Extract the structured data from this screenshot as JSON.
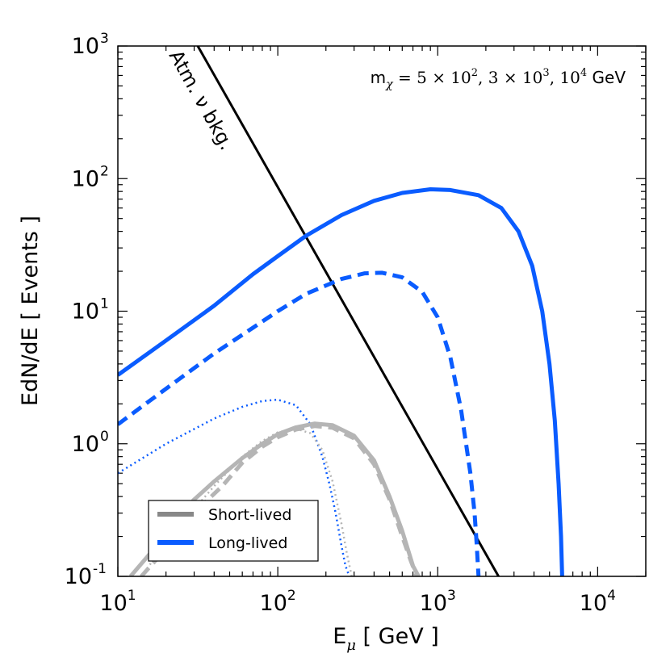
{
  "chart_data": {
    "type": "line",
    "title": "",
    "xlabel": {
      "base": "E",
      "sub": "μ",
      "units": " [ GeV ]"
    },
    "ylabel": "EdN/dE [ Events ]",
    "xscale": "log",
    "yscale": "log",
    "xlim": [
      10,
      20000
    ],
    "ylim": [
      0.1,
      1000
    ],
    "x_ticks": [
      {
        "value": 10,
        "base": "10",
        "exp": "1"
      },
      {
        "value": 100,
        "base": "10",
        "exp": "2"
      },
      {
        "value": 1000,
        "base": "10",
        "exp": "3"
      },
      {
        "value": 10000,
        "base": "10",
        "exp": "4"
      }
    ],
    "y_ticks": [
      {
        "value": 0.1,
        "base": "10",
        "exp": "-1"
      },
      {
        "value": 1,
        "base": "10",
        "exp": "0"
      },
      {
        "value": 10,
        "base": "10",
        "exp": "1"
      },
      {
        "value": 100,
        "base": "10",
        "exp": "2"
      },
      {
        "value": 1000,
        "base": "10",
        "exp": "3"
      }
    ],
    "annotations": {
      "mass_label": "m",
      "mass_sub": "χ",
      "mass_eq": " = 5 × 10",
      "mass_e1": "2",
      "mass_sep1": ", 3 × 10",
      "mass_e2": "3",
      "mass_sep2": ", 10",
      "mass_e3": "4",
      "mass_unit": " GeV",
      "bkg_label": "Atm. ν bkg."
    },
    "legend": {
      "position": "lower-left",
      "entries": [
        {
          "label": "Short-lived",
          "color": "#888888"
        },
        {
          "label": "Long-lived",
          "color": "#0a5cff"
        }
      ]
    },
    "colors": {
      "long": "#0a5cff",
      "short": "#b5b5b5",
      "bkg": "#000000"
    },
    "series": [
      {
        "name": "Atm. ν bkg.",
        "style": "solid",
        "color": "bkg",
        "width": 3,
        "x": [
          31.6,
          2400
        ],
        "y": [
          1000,
          0.1
        ]
      },
      {
        "name": "Long-lived m=1e4",
        "style": "solid",
        "color": "long",
        "width": 5,
        "x": [
          10,
          20,
          40,
          70,
          100,
          150,
          250,
          400,
          600,
          900,
          1200,
          1800,
          2500,
          3200,
          3900,
          4500,
          5000,
          5400,
          5700,
          5900,
          6000
        ],
        "y": [
          3.3,
          6,
          11,
          19,
          26,
          37,
          53,
          68,
          78,
          83,
          82,
          75,
          60,
          40,
          22,
          10,
          4,
          1.5,
          0.5,
          0.2,
          0.1
        ]
      },
      {
        "name": "Long-lived m=3e3",
        "style": "dashed",
        "color": "long",
        "width": 5,
        "x": [
          10,
          20,
          40,
          70,
          100,
          150,
          250,
          350,
          450,
          600,
          800,
          1000,
          1200,
          1400,
          1600,
          1700,
          1750,
          1800
        ],
        "y": [
          1.4,
          2.6,
          4.8,
          7.5,
          10,
          13.5,
          17.5,
          19.3,
          19.5,
          18,
          14,
          9,
          4.5,
          1.8,
          0.6,
          0.3,
          0.18,
          0.1
        ]
      },
      {
        "name": "Long-lived m=5e2",
        "style": "dotted",
        "color": "long",
        "width": 2.5,
        "x": [
          10,
          20,
          40,
          60,
          80,
          100,
          130,
          160,
          190,
          210,
          230,
          250,
          265,
          280
        ],
        "y": [
          0.6,
          1,
          1.55,
          1.9,
          2.1,
          2.15,
          1.95,
          1.4,
          0.8,
          0.5,
          0.3,
          0.17,
          0.12,
          0.1
        ]
      },
      {
        "name": "Short-lived m=1e4",
        "style": "solid",
        "color": "short",
        "width": 5,
        "x": [
          12,
          16,
          20,
          25,
          30,
          40,
          60,
          80,
          100,
          130,
          170,
          220,
          300,
          400,
          500,
          600,
          700,
          760
        ],
        "y": [
          0.1,
          0.15,
          0.22,
          0.3,
          0.38,
          0.52,
          0.78,
          1,
          1.18,
          1.33,
          1.42,
          1.38,
          1.15,
          0.75,
          0.4,
          0.22,
          0.12,
          0.1
        ]
      },
      {
        "name": "Short-lived m=3e3",
        "style": "dashed",
        "color": "short",
        "width": 5,
        "x": [
          14,
          18,
          22,
          28,
          35,
          45,
          60,
          80,
          100,
          130,
          170,
          220,
          300,
          400,
          500,
          600,
          680,
          740
        ],
        "y": [
          0.1,
          0.14,
          0.2,
          0.28,
          0.36,
          0.48,
          0.72,
          0.95,
          1.12,
          1.28,
          1.36,
          1.32,
          1.1,
          0.7,
          0.38,
          0.2,
          0.13,
          0.1
        ]
      },
      {
        "name": "Short-lived m=5e2",
        "style": "dotted",
        "color": "short",
        "width": 2.5,
        "x": [
          14,
          20,
          30,
          40,
          60,
          80,
          100,
          130,
          160,
          190,
          220,
          250,
          270,
          290
        ],
        "y": [
          0.1,
          0.18,
          0.32,
          0.48,
          0.8,
          1.05,
          1.22,
          1.3,
          1.2,
          0.9,
          0.52,
          0.25,
          0.15,
          0.1
        ]
      }
    ]
  }
}
